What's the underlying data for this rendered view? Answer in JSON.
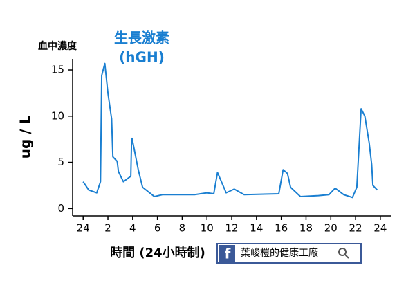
{
  "chart_data": {
    "type": "line",
    "title": "生長激素",
    "subtitle": "(hGH)",
    "y_axis_top_label": "血中濃度",
    "y_label": "ug / L",
    "x_label": "時間 (24小時制)",
    "color": "#1a7fd1",
    "x": [
      0,
      0.45,
      1.1,
      1.4,
      1.5,
      1.75,
      2.0,
      2.3,
      2.4,
      2.75,
      2.85,
      3.25,
      3.85,
      3.9,
      3.95,
      4.45,
      4.8,
      5.75,
      6.4,
      9,
      10,
      10.55,
      10.85,
      11.55,
      12.2,
      13,
      15.8,
      16.15,
      16.5,
      16.75,
      17.55,
      19,
      19.85,
      20.35,
      21.05,
      21.75,
      22.1,
      22.45,
      22.75,
      23.1,
      23.3,
      23.4,
      23.75
    ],
    "values": [
      2.9,
      2.0,
      1.7,
      2.9,
      14.4,
      15.7,
      12.5,
      9.7,
      5.6,
      5.1,
      4.0,
      2.9,
      3.5,
      6.7,
      7.6,
      4.2,
      2.3,
      1.3,
      1.5,
      1.5,
      1.7,
      1.6,
      3.9,
      1.7,
      2.1,
      1.5,
      1.6,
      4.2,
      3.8,
      2.3,
      1.3,
      1.4,
      1.5,
      2.2,
      1.5,
      1.2,
      2.3,
      10.8,
      10.0,
      7.1,
      4.8,
      2.5,
      2.0
    ],
    "xlim": [
      -0.85,
      24.9
    ],
    "xticks": [
      {
        "value": 0,
        "label": "24"
      },
      2,
      4,
      6,
      8,
      10,
      12,
      14,
      16,
      18,
      20,
      22,
      24
    ],
    "ylim": [
      -0.8,
      16.2
    ],
    "yticks": [
      0,
      5,
      10,
      15
    ],
    "grid": false
  },
  "badge": {
    "icon": "f",
    "text": "葉峻榿的健康工廠"
  }
}
